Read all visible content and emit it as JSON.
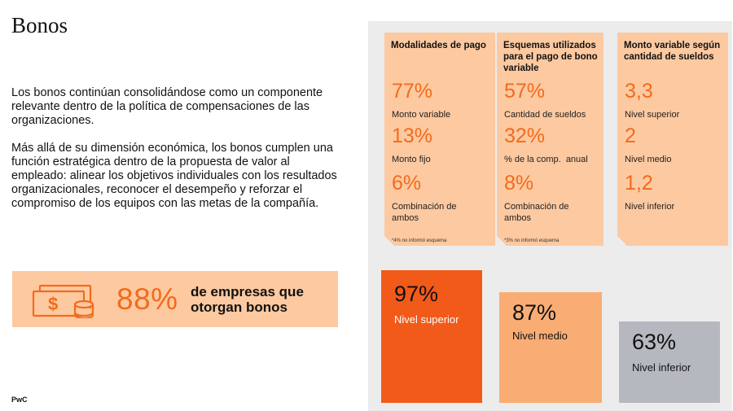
{
  "title": "Bonos",
  "paragraphs": [
    "Los bonos continúan consolidándose como un componente relevante dentro de la política de compensaciones de las organizaciones.",
    "Más allá de su dimensión económica, los bonos cumplen una función estratégica dentro de la propuesta de valor al empleado: alinear los objetivos individuales con los resultados organizacionales, reconocer el desempeño y reforzar el compromiso de los equipos con las metas de la compañía."
  ],
  "banner": {
    "icon": "money-coins-icon",
    "value": "88%",
    "text": "de empresas que otorgan bonos"
  },
  "cards": [
    {
      "heading": "Modalidades de pago",
      "stats": [
        {
          "value": "77%",
          "label": "Monto variable"
        },
        {
          "value": "13%",
          "label": "Monto fijo"
        },
        {
          "value": "6%",
          "label": "Combinación de ambos"
        }
      ],
      "note": "*4% no informó esquema"
    },
    {
      "heading": "Esquemas utilizados para el pago de bono variable",
      "stats": [
        {
          "value": "57%",
          "label": "Cantidad de sueldos"
        },
        {
          "value": "32%",
          "label": "% de la comp.  anual"
        },
        {
          "value": "8%",
          "label": "Combinación de ambos"
        }
      ],
      "note": "*3% no informó esquema"
    },
    {
      "heading": "Monto variable según cantidad de sueldos",
      "stats": [
        {
          "value": "3,3",
          "label": "Nivel superior"
        },
        {
          "value": "2",
          "label": "Nivel medio"
        },
        {
          "value": "1,2",
          "label": "Nivel inferior"
        }
      ]
    }
  ],
  "levels": [
    {
      "value": "97%",
      "label": "Nivel superior",
      "color": "#f25a1a"
    },
    {
      "value": "87%",
      "label": "Nivel medio",
      "color": "#f9ad74"
    },
    {
      "value": "63%",
      "label": "Nivel inferior",
      "color": "#b5b9bf"
    }
  ],
  "colors": {
    "accent": "#f26b1d",
    "card": "#fdc9a0",
    "panel": "#ececec"
  },
  "footer": "PwC"
}
